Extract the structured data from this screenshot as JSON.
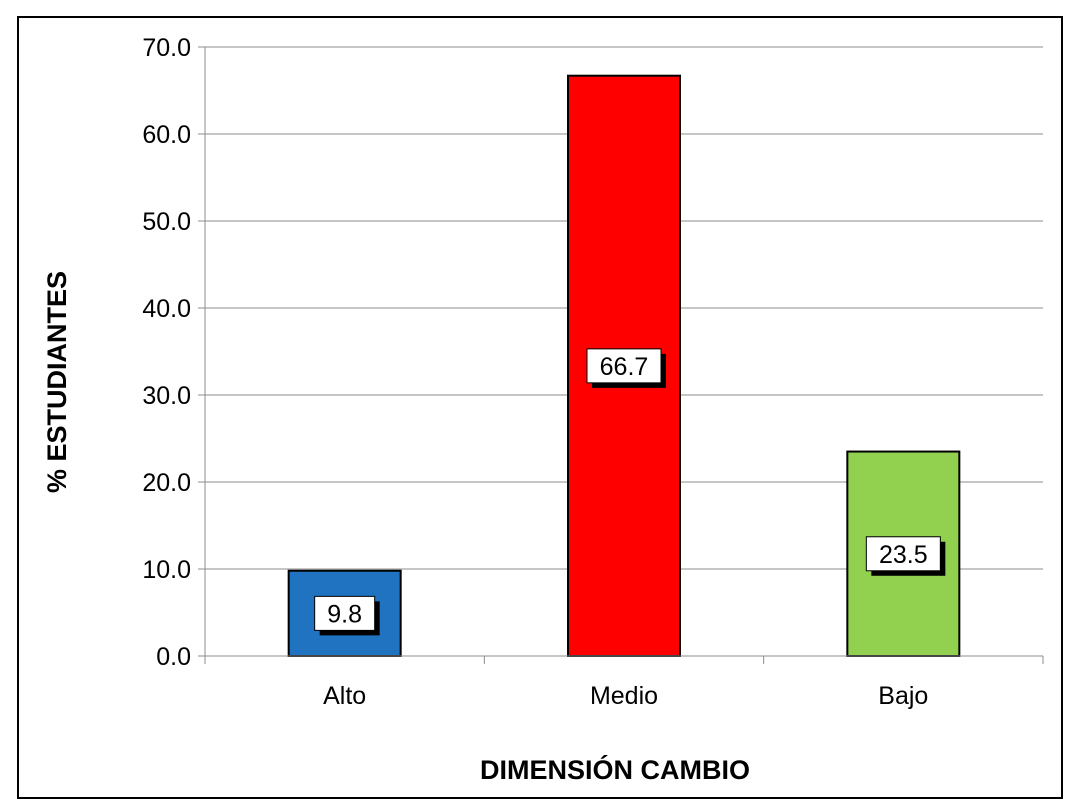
{
  "chart_data": {
    "type": "bar",
    "title": "",
    "xlabel": "DIMENSIÓN CAMBIO",
    "ylabel": "% ESTUDIANTES",
    "categories": [
      "Alto",
      "Medio",
      "Bajo"
    ],
    "values": [
      9.8,
      66.7,
      23.5
    ],
    "value_labels": [
      "9.8",
      "66.7",
      "23.5"
    ],
    "bar_colors": [
      "#1f73c1",
      "#ff0000",
      "#92d050"
    ],
    "ylim": [
      0,
      70
    ],
    "yticks": [
      "0.0",
      "10.0",
      "20.0",
      "30.0",
      "40.0",
      "50.0",
      "60.0",
      "70.0"
    ],
    "grid": true,
    "legend": "none"
  }
}
